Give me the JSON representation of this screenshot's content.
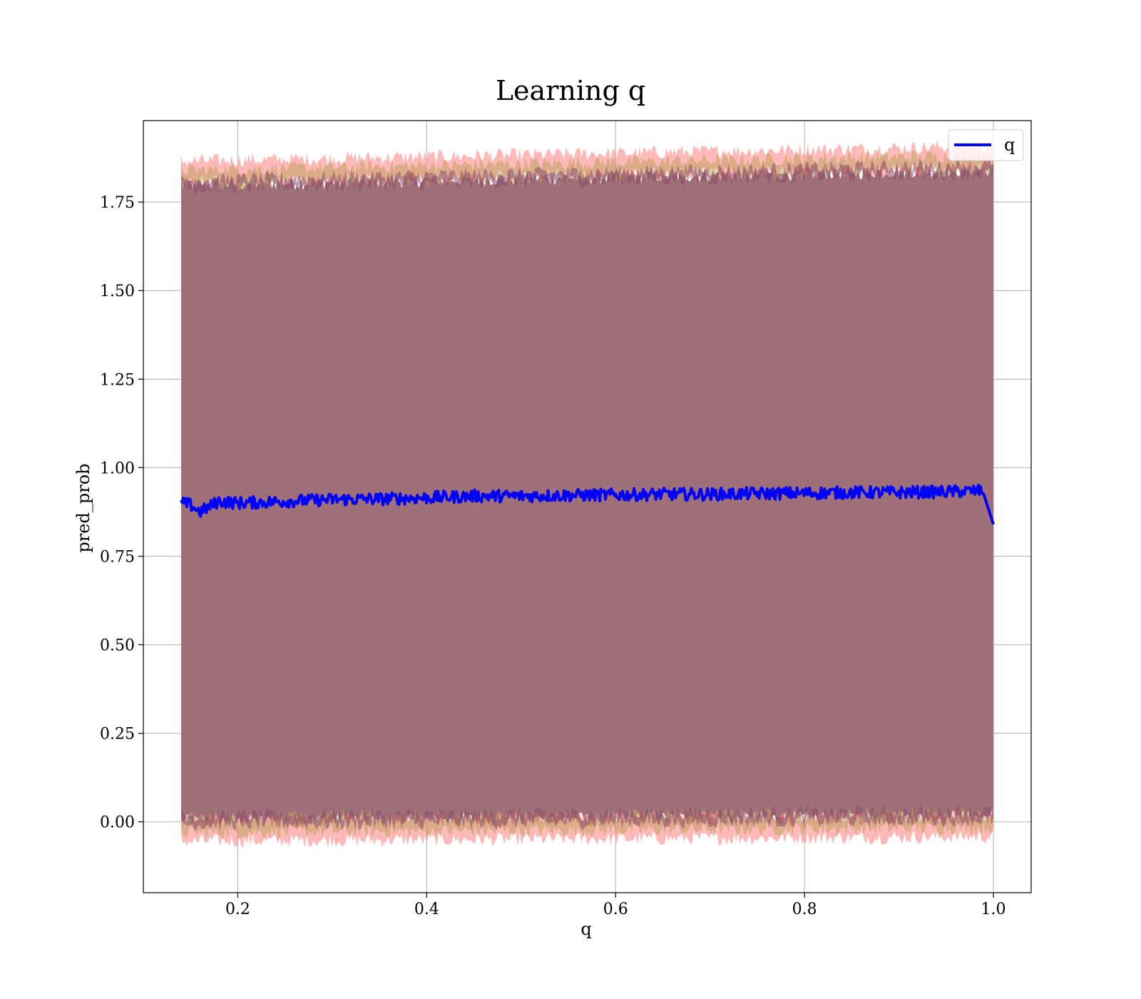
{
  "chart_data": {
    "type": "line",
    "title": "Learning q",
    "xlabel": "q",
    "ylabel": "pred_prob",
    "xlim": [
      0.1,
      1.04
    ],
    "ylim": [
      -0.2,
      1.98
    ],
    "xticks": [
      0.2,
      0.4,
      0.6,
      0.8,
      1.0
    ],
    "xtick_labels": [
      "0.2",
      "0.4",
      "0.6",
      "0.8",
      "1.0"
    ],
    "yticks": [
      0.0,
      0.25,
      0.5,
      0.75,
      1.0,
      1.25,
      1.5,
      1.75
    ],
    "ytick_labels": [
      "0.00",
      "0.25",
      "0.50",
      "0.75",
      "1.00",
      "1.25",
      "1.50",
      "1.75"
    ],
    "grid": true,
    "legend_position": "top-right",
    "series": [
      {
        "name": "q",
        "color": "#0000ff",
        "x": [
          0.14,
          0.15,
          0.16,
          0.18,
          0.2,
          0.25,
          0.3,
          0.35,
          0.4,
          0.45,
          0.5,
          0.55,
          0.6,
          0.65,
          0.7,
          0.75,
          0.8,
          0.85,
          0.9,
          0.95,
          0.99,
          1.0
        ],
        "y": [
          0.9,
          0.895,
          0.875,
          0.905,
          0.9,
          0.905,
          0.91,
          0.912,
          0.915,
          0.92,
          0.92,
          0.922,
          0.923,
          0.925,
          0.925,
          0.927,
          0.928,
          0.93,
          0.93,
          0.932,
          0.935,
          0.84
        ]
      }
    ],
    "bands": [
      {
        "name": "band-outer",
        "color": "#ff7f7f",
        "lower_center": -0.025,
        "upper_center": 1.835,
        "x_range": [
          0.14,
          1.0
        ]
      },
      {
        "name": "band-middle",
        "color": "#c0a060",
        "lower_center": -0.01,
        "upper_center": 1.82,
        "x_range": [
          0.14,
          1.0
        ]
      },
      {
        "name": "band-inner",
        "color": "#8a4a6a",
        "lower_center": 0.005,
        "upper_center": 1.8,
        "x_range": [
          0.14,
          1.0
        ]
      }
    ],
    "fill_color": "#a07078"
  }
}
